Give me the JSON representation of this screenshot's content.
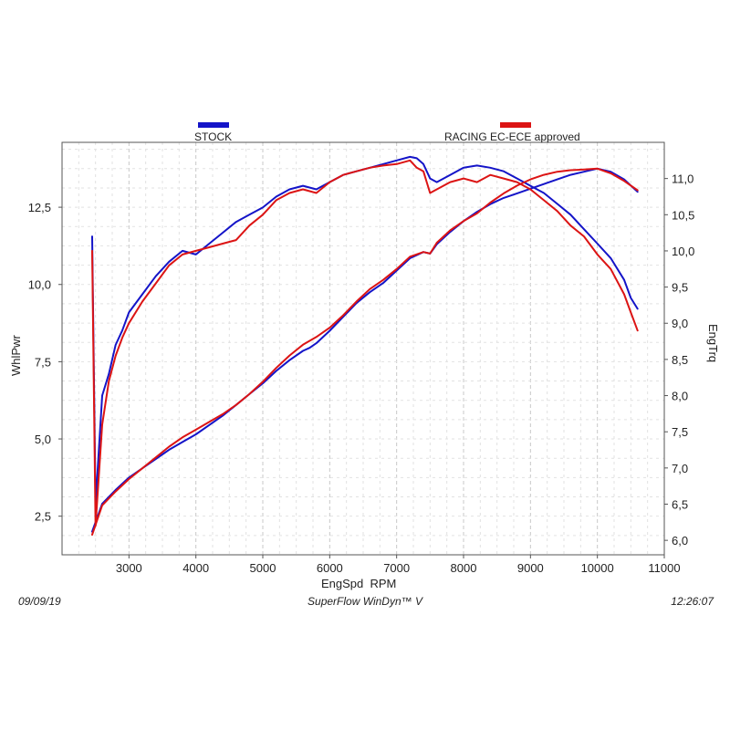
{
  "chart_data": {
    "type": "line",
    "xlabel": "EngSpd  RPM",
    "ylabel_left": "WhlPwr",
    "ylabel_right": "EngTrq",
    "xlim": [
      2000,
      11000
    ],
    "ylim_left": [
      1.25,
      14.6
    ],
    "ylim_right": [
      5.8,
      11.5
    ],
    "x_ticks": [
      "3000",
      "4000",
      "5000",
      "6000",
      "7000",
      "8000",
      "9000",
      "10000",
      "11000"
    ],
    "x_tick_values": [
      3000,
      4000,
      5000,
      6000,
      7000,
      8000,
      9000,
      10000,
      11000
    ],
    "y_left_ticks": [
      "2,5",
      "5,0",
      "7,5",
      "10,0",
      "12,5"
    ],
    "y_left_tick_values": [
      2.5,
      5.0,
      7.5,
      10.0,
      12.5
    ],
    "y_right_ticks": [
      "6,0",
      "6,5",
      "7,0",
      "7,5",
      "8,0",
      "8,5",
      "9,0",
      "9,5",
      "10,0",
      "10,5",
      "11,0"
    ],
    "y_right_tick_values": [
      6.0,
      6.5,
      7.0,
      7.5,
      8.0,
      8.5,
      9.0,
      9.5,
      10.0,
      10.5,
      11.0
    ],
    "grid": true,
    "legend_position": "top",
    "series": [
      {
        "name": "STOCK",
        "color": "#1414c8",
        "axis": "right",
        "x": [
          2450,
          2500,
          2600,
          2700,
          2800,
          2900,
          3000,
          3200,
          3400,
          3600,
          3800,
          4000,
          4200,
          4400,
          4600,
          4800,
          5000,
          5200,
          5400,
          5600,
          5800,
          6000,
          6200,
          6400,
          6600,
          6800,
          7000,
          7200,
          7300,
          7400,
          7500,
          7600,
          7800,
          8000,
          8200,
          8400,
          8600,
          8800,
          9000,
          9200,
          9400,
          9600,
          9800,
          10000,
          10200,
          10400,
          10500,
          10600
        ],
        "values": [
          10.2,
          6.5,
          8.0,
          8.3,
          8.7,
          8.9,
          9.15,
          9.4,
          9.65,
          9.85,
          10.0,
          9.95,
          10.1,
          10.25,
          10.4,
          10.5,
          10.6,
          10.75,
          10.85,
          10.9,
          10.85,
          10.95,
          11.05,
          11.1,
          11.15,
          11.2,
          11.25,
          11.3,
          11.28,
          11.2,
          11.0,
          10.95,
          11.05,
          11.15,
          11.18,
          11.15,
          11.1,
          11.0,
          10.9,
          10.8,
          10.65,
          10.5,
          10.3,
          10.1,
          9.9,
          9.6,
          9.35,
          9.2
        ],
        "values_note": ""
      },
      {
        "name": "STOCK",
        "color": "#1414c8",
        "axis": "left",
        "x": [
          2450,
          2600,
          2800,
          3000,
          3200,
          3400,
          3600,
          3800,
          4000,
          4200,
          4400,
          4600,
          4800,
          5000,
          5200,
          5400,
          5600,
          5700,
          5800,
          6000,
          6200,
          6400,
          6600,
          6800,
          7000,
          7200,
          7400,
          7500,
          7600,
          7800,
          8000,
          8200,
          8400,
          8600,
          8800,
          9000,
          9200,
          9400,
          9600,
          9800,
          10000,
          10200,
          10400,
          10600
        ],
        "values": [
          2.0,
          2.9,
          3.35,
          3.75,
          4.05,
          4.35,
          4.65,
          4.9,
          5.15,
          5.45,
          5.75,
          6.1,
          6.45,
          6.8,
          7.2,
          7.55,
          7.85,
          7.95,
          8.1,
          8.5,
          8.95,
          9.4,
          9.75,
          10.05,
          10.45,
          10.85,
          11.05,
          11.0,
          11.3,
          11.7,
          12.05,
          12.35,
          12.6,
          12.8,
          12.95,
          13.1,
          13.25,
          13.4,
          13.55,
          13.65,
          13.75,
          13.65,
          13.4,
          13.0
        ]
      },
      {
        "name": "RACING EC-ECE approved",
        "color": "#dc1414",
        "axis": "right",
        "x": [
          2450,
          2500,
          2600,
          2700,
          2800,
          2900,
          3000,
          3200,
          3400,
          3600,
          3800,
          4000,
          4200,
          4400,
          4600,
          4800,
          5000,
          5200,
          5400,
          5600,
          5800,
          6000,
          6200,
          6400,
          6600,
          6800,
          7000,
          7200,
          7300,
          7400,
          7500,
          7600,
          7800,
          8000,
          8200,
          8400,
          8600,
          8800,
          9000,
          9200,
          9400,
          9600,
          9800,
          10000,
          10200,
          10400,
          10500,
          10600
        ],
        "values": [
          10.0,
          6.2,
          7.6,
          8.2,
          8.55,
          8.8,
          9.0,
          9.3,
          9.55,
          9.8,
          9.95,
          10.0,
          10.05,
          10.1,
          10.15,
          10.35,
          10.5,
          10.7,
          10.8,
          10.85,
          10.8,
          10.95,
          11.05,
          11.1,
          11.15,
          11.18,
          11.2,
          11.25,
          11.15,
          11.1,
          10.8,
          10.85,
          10.95,
          11.0,
          10.95,
          11.05,
          11.0,
          10.95,
          10.85,
          10.7,
          10.55,
          10.35,
          10.2,
          9.95,
          9.75,
          9.4,
          9.15,
          8.9
        ],
        "values_note": ""
      },
      {
        "name": "RACING EC-ECE approved",
        "color": "#dc1414",
        "axis": "left",
        "x": [
          2450,
          2600,
          2800,
          3000,
          3200,
          3400,
          3600,
          3800,
          4000,
          4200,
          4400,
          4600,
          4800,
          5000,
          5200,
          5400,
          5600,
          5800,
          6000,
          6200,
          6400,
          6600,
          6800,
          7000,
          7200,
          7400,
          7500,
          7600,
          7800,
          8000,
          8200,
          8400,
          8600,
          8800,
          9000,
          9200,
          9400,
          9600,
          9800,
          10000,
          10200,
          10400,
          10600
        ],
        "values": [
          1.9,
          2.85,
          3.3,
          3.7,
          4.05,
          4.4,
          4.75,
          5.05,
          5.3,
          5.55,
          5.8,
          6.1,
          6.45,
          6.85,
          7.3,
          7.7,
          8.05,
          8.3,
          8.6,
          9.0,
          9.45,
          9.85,
          10.15,
          10.5,
          10.9,
          11.05,
          11.0,
          11.35,
          11.75,
          12.05,
          12.3,
          12.65,
          12.95,
          13.2,
          13.4,
          13.55,
          13.65,
          13.7,
          13.72,
          13.75,
          13.6,
          13.35,
          13.05
        ]
      }
    ]
  },
  "legend": {
    "stock_label": "STOCK",
    "racing_label": "RACING EC-ECE approved"
  },
  "footer": {
    "date": "09/09/19",
    "software": "SuperFlow WinDyn™ V",
    "time": "12:26:07"
  }
}
